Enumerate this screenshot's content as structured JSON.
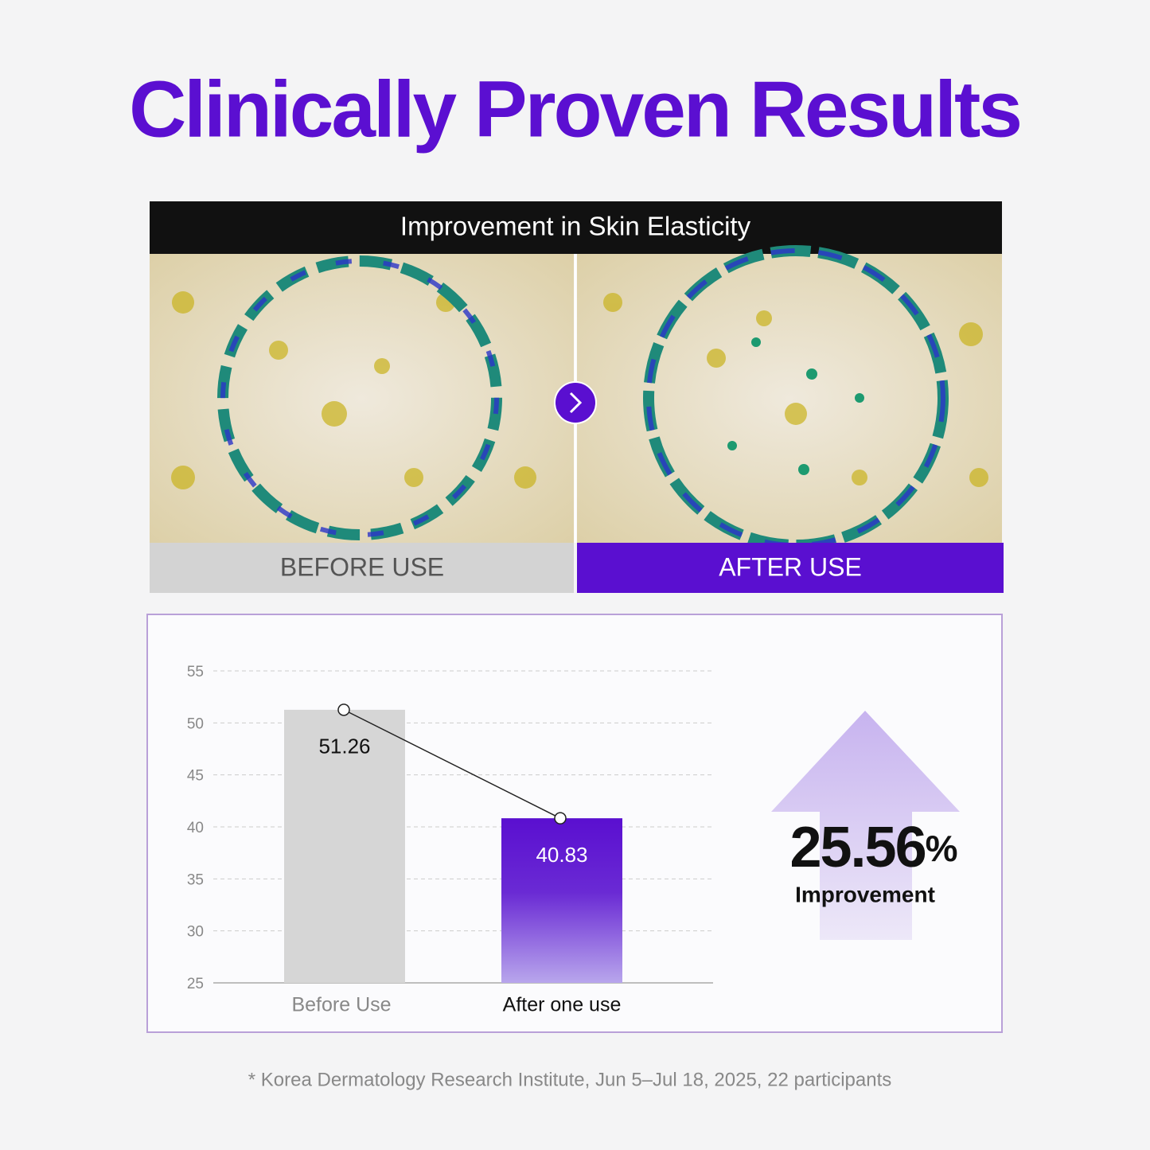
{
  "header": {
    "title": "Clinically Proven Results"
  },
  "panel": {
    "title": "Improvement in Skin Elasticity",
    "before_label": "BEFORE USE",
    "after_label": "AFTER USE"
  },
  "chart_data": {
    "type": "bar",
    "categories": [
      "Before Use",
      "After one use"
    ],
    "values": [
      51.26,
      40.83
    ],
    "colors": [
      "#d6d6d6",
      "#5a0fd0"
    ],
    "ylim": [
      25,
      55
    ],
    "yticks": [
      25,
      30,
      35,
      40,
      45,
      50,
      55
    ],
    "grid": true
  },
  "callout": {
    "value": "25.56",
    "unit": "%",
    "label": "Improvement"
  },
  "footnote": "* Korea Dermatology Research Institute, Jun 5–Jul 18, 2025, 22 participants"
}
